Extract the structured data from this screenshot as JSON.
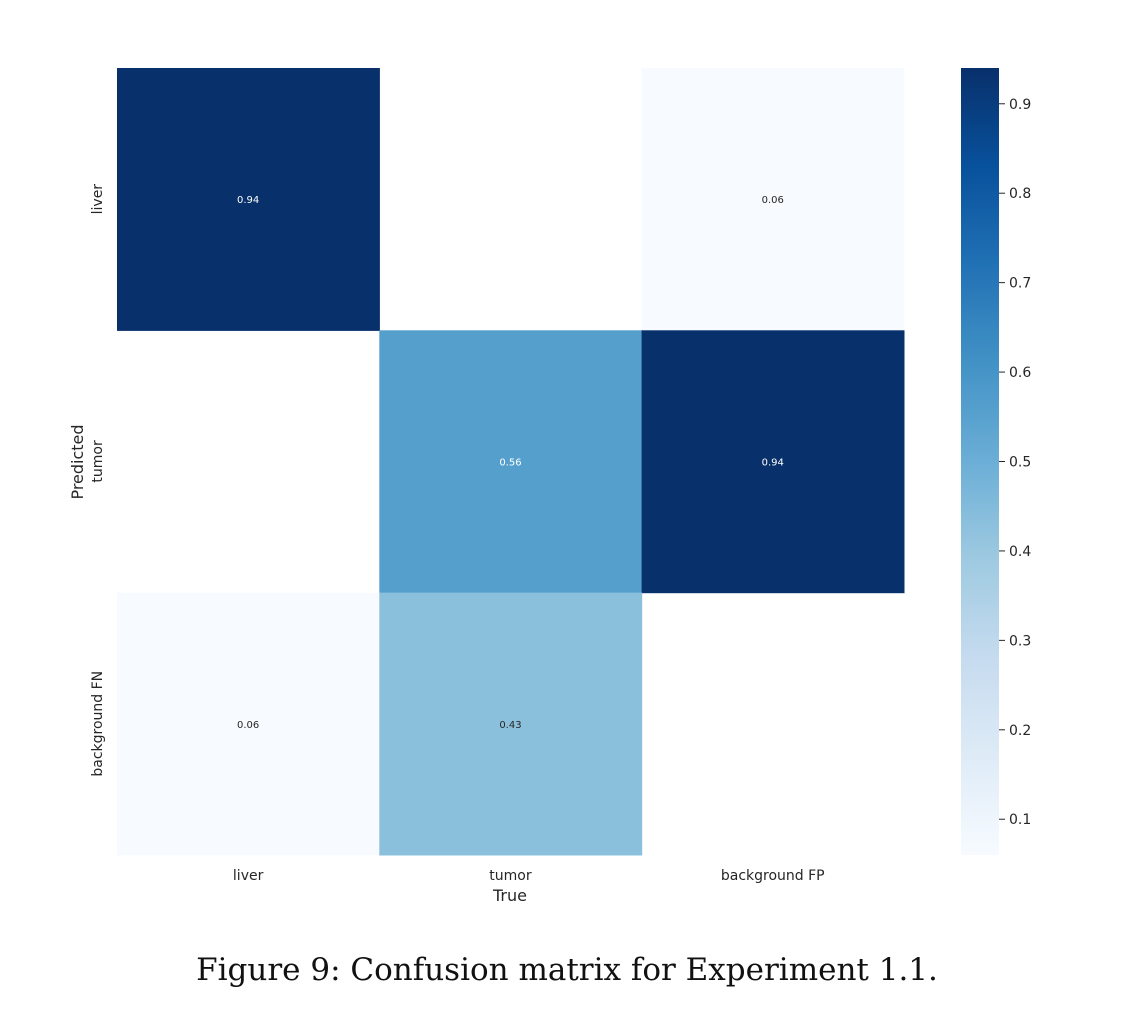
{
  "caption": "Figure 9: Confusion matrix for Experiment 1.1.",
  "chart_data": {
    "type": "heatmap",
    "title": "",
    "xlabel": "True",
    "ylabel": "Predicted",
    "x_categories": [
      "liver",
      "tumor",
      "background FP"
    ],
    "y_categories": [
      "liver",
      "tumor",
      "background FN"
    ],
    "values": [
      [
        0.94,
        null,
        0.06
      ],
      [
        null,
        0.56,
        0.94
      ],
      [
        0.06,
        0.43,
        null
      ]
    ],
    "colorbar": {
      "range": [
        0.06,
        0.94
      ],
      "ticks": [
        0.1,
        0.2,
        0.3,
        0.4,
        0.5,
        0.6,
        0.7,
        0.8,
        0.9
      ],
      "tick_labels": [
        "0.1",
        "0.2",
        "0.3",
        "0.4",
        "0.5",
        "0.6",
        "0.7",
        "0.8",
        "0.9"
      ],
      "colormap": "Blues"
    },
    "grid": false
  }
}
